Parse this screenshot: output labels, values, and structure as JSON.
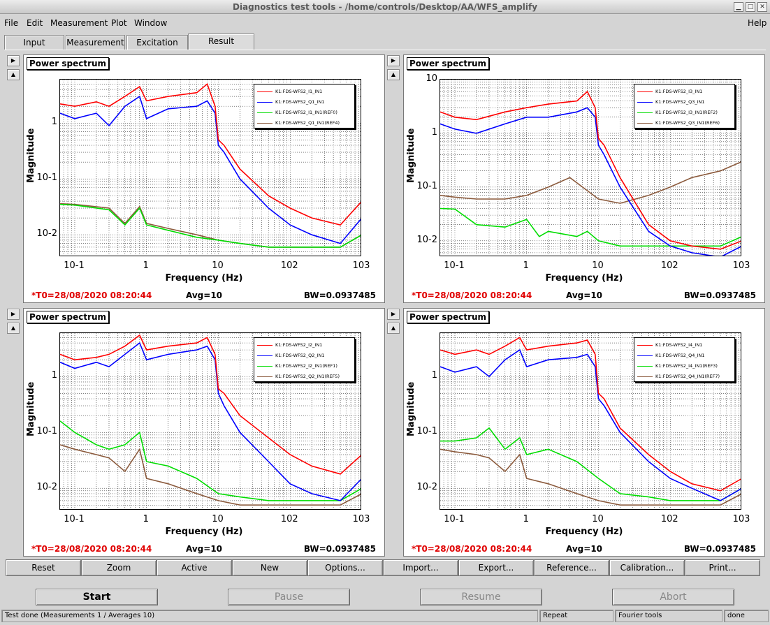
{
  "window": {
    "title": "Diagnostics test tools - /home/controls/Desktop/AA/WFS_amplify"
  },
  "menu": {
    "file": "File",
    "edit": "Edit",
    "measurement": "Measurement",
    "plot": "Plot",
    "window": "Window",
    "help": "Help"
  },
  "tabs": [
    "Input",
    "Measurement",
    "Excitation",
    "Result"
  ],
  "buttons": [
    "Reset",
    "Zoom",
    "Active",
    "New",
    "Options...",
    "Import...",
    "Export...",
    "Reference...",
    "Calibration...",
    "Print..."
  ],
  "controls": {
    "start": "Start",
    "pause": "Pause",
    "resume": "Resume",
    "abort": "Abort"
  },
  "status": {
    "message": "Test done (Measurements 1 / Averages 10)",
    "mode": "Repeat",
    "tool": "Fourier tools",
    "state": "done"
  },
  "colors": {
    "ch1": "#ff0000",
    "ch2": "#0000ff",
    "ref1": "#00dd00",
    "ref2": "#8b5a3c"
  },
  "chart_data": [
    {
      "type": "line",
      "title": "Power spectrum",
      "xlabel": "Frequency (Hz)",
      "ylabel": "Magnitude",
      "x_scale": "log",
      "y_scale": "log",
      "xlim": [
        0.0625,
        1000
      ],
      "ylim": [
        0.004,
        6
      ],
      "x_ticks": [
        "10-1",
        "1",
        "10",
        "102",
        "103"
      ],
      "y_ticks": [
        "1",
        "10-1",
        "10-2"
      ],
      "legend": [
        "K1:FDS-WFS2_I1_IN1",
        "K1:FDS-WFS2_Q1_IN1",
        "K1:FDS-WFS2_I1_IN1(REF0)",
        "K1:FDS-WFS2_Q1_IN1(REF4)"
      ],
      "t0": "*T0=28/08/2020 08:20:44",
      "avg": "Avg=10",
      "bw": "BW=0.0937485",
      "series": [
        {
          "x": [
            0.0625,
            0.1,
            0.2,
            0.3,
            0.5,
            0.8,
            1,
            2,
            5,
            7,
            9,
            10,
            12,
            20,
            50,
            100,
            200,
            500,
            1000
          ],
          "values": [
            2.2,
            2.0,
            2.4,
            2.0,
            3.0,
            4.5,
            2.5,
            3.0,
            3.5,
            5.0,
            2.0,
            0.5,
            0.4,
            0.15,
            0.05,
            0.03,
            0.02,
            0.015,
            0.04
          ]
        },
        {
          "x": [
            0.0625,
            0.1,
            0.2,
            0.3,
            0.5,
            0.8,
            1,
            2,
            5,
            7,
            9,
            10,
            12,
            20,
            50,
            100,
            200,
            500,
            1000
          ],
          "values": [
            1.5,
            1.2,
            1.5,
            0.9,
            2.0,
            3.0,
            1.2,
            1.8,
            2.0,
            2.5,
            1.5,
            0.4,
            0.3,
            0.1,
            0.03,
            0.015,
            0.01,
            0.007,
            0.02
          ]
        },
        {
          "x": [
            0.0625,
            0.1,
            0.3,
            0.5,
            0.8,
            1,
            2,
            5,
            10,
            20,
            50,
            100,
            500,
            1000
          ],
          "values": [
            0.035,
            0.034,
            0.028,
            0.015,
            0.03,
            0.015,
            0.012,
            0.009,
            0.008,
            0.007,
            0.006,
            0.006,
            0.006,
            0.01
          ]
        },
        {
          "x": [
            0.0625,
            0.1,
            0.3,
            0.5,
            0.8,
            1,
            2,
            5,
            10,
            20,
            50,
            100,
            500,
            1000
          ],
          "values": [
            0.036,
            0.035,
            0.03,
            0.016,
            0.032,
            0.016,
            0.013,
            0.01,
            0.008,
            0.007,
            0.006,
            0.006,
            0.006,
            0.01
          ]
        }
      ]
    },
    {
      "type": "line",
      "title": "Power spectrum",
      "xlabel": "Frequency (Hz)",
      "ylabel": "Magnitude",
      "x_scale": "log",
      "y_scale": "log",
      "xlim": [
        0.0625,
        1000
      ],
      "ylim": [
        0.005,
        10
      ],
      "x_ticks": [
        "10-1",
        "1",
        "10",
        "102",
        "103"
      ],
      "y_ticks": [
        "10",
        "1",
        "10-1",
        "10-2"
      ],
      "legend": [
        "K1:FDS-WFS2_I3_IN1",
        "K1:FDS-WFS2_Q3_IN1",
        "K1:FDS-WFS2_I3_IN1(REF2)",
        "K1:FDS-WFS2_Q3_IN1(REF6)"
      ],
      "t0": "*T0=28/08/2020 08:20:44",
      "avg": "Avg=10",
      "bw": "BW=0.0937485",
      "series": [
        {
          "x": [
            0.0625,
            0.1,
            0.2,
            0.5,
            1,
            2,
            5,
            7,
            9,
            10,
            12,
            20,
            50,
            100,
            200,
            500,
            1000
          ],
          "values": [
            2.5,
            2.0,
            1.8,
            2.5,
            3.0,
            3.5,
            4.0,
            6.0,
            3.0,
            0.8,
            0.6,
            0.15,
            0.02,
            0.01,
            0.008,
            0.007,
            0.01
          ]
        },
        {
          "x": [
            0.0625,
            0.1,
            0.2,
            0.5,
            1,
            2,
            5,
            7,
            9,
            10,
            12,
            20,
            50,
            100,
            200,
            500,
            1000
          ],
          "values": [
            1.5,
            1.2,
            1.0,
            1.5,
            2.0,
            2.0,
            2.5,
            3.0,
            2.0,
            0.6,
            0.4,
            0.1,
            0.015,
            0.008,
            0.006,
            0.005,
            0.008
          ]
        },
        {
          "x": [
            0.0625,
            0.1,
            0.2,
            0.5,
            1,
            1.5,
            2,
            5,
            7,
            10,
            20,
            50,
            100,
            500,
            1000
          ],
          "values": [
            0.04,
            0.039,
            0.02,
            0.018,
            0.025,
            0.012,
            0.015,
            0.012,
            0.015,
            0.01,
            0.008,
            0.008,
            0.008,
            0.008,
            0.012
          ]
        },
        {
          "x": [
            0.0625,
            0.1,
            0.2,
            0.5,
            1,
            2,
            4,
            6,
            10,
            20,
            50,
            100,
            200,
            500,
            1000
          ],
          "values": [
            0.07,
            0.065,
            0.06,
            0.06,
            0.07,
            0.1,
            0.15,
            0.1,
            0.06,
            0.05,
            0.07,
            0.1,
            0.15,
            0.2,
            0.3
          ]
        }
      ]
    },
    {
      "type": "line",
      "title": "Power spectrum",
      "xlabel": "Frequency (Hz)",
      "ylabel": "Magnitude",
      "x_scale": "log",
      "y_scale": "log",
      "xlim": [
        0.0625,
        1000
      ],
      "ylim": [
        0.004,
        6
      ],
      "x_ticks": [
        "10-1",
        "1",
        "10",
        "102",
        "103"
      ],
      "y_ticks": [
        "1",
        "10-1",
        "10-2"
      ],
      "legend": [
        "K1:FDS-WFS2_I2_IN1",
        "K1:FDS-WFS2_Q2_IN1",
        "K1:FDS-WFS2_I2_IN1(REF1)",
        "K1:FDS-WFS2_Q2_IN1(REF5)"
      ],
      "t0": "*T0=28/08/2020 08:20:44",
      "avg": "Avg=10",
      "bw": "BW=0.0937485",
      "series": [
        {
          "x": [
            0.0625,
            0.1,
            0.2,
            0.3,
            0.5,
            0.8,
            1,
            2,
            5,
            7,
            9,
            10,
            12,
            20,
            50,
            100,
            200,
            500,
            1000
          ],
          "values": [
            2.5,
            2.0,
            2.2,
            2.5,
            3.5,
            5.5,
            3.0,
            3.5,
            4.0,
            5.0,
            2.5,
            0.6,
            0.5,
            0.2,
            0.08,
            0.04,
            0.025,
            0.018,
            0.04
          ]
        },
        {
          "x": [
            0.0625,
            0.1,
            0.2,
            0.3,
            0.5,
            0.8,
            1,
            2,
            5,
            7,
            9,
            10,
            12,
            20,
            50,
            100,
            200,
            500,
            1000
          ],
          "values": [
            1.8,
            1.4,
            1.8,
            1.5,
            2.5,
            4.0,
            2.0,
            2.5,
            3.0,
            3.5,
            2.0,
            0.5,
            0.3,
            0.1,
            0.03,
            0.012,
            0.008,
            0.006,
            0.015
          ]
        },
        {
          "x": [
            0.0625,
            0.1,
            0.2,
            0.3,
            0.5,
            0.8,
            1,
            2,
            5,
            10,
            20,
            50,
            100,
            500,
            1000
          ],
          "values": [
            0.16,
            0.1,
            0.06,
            0.05,
            0.06,
            0.1,
            0.03,
            0.025,
            0.015,
            0.008,
            0.007,
            0.006,
            0.006,
            0.006,
            0.01
          ]
        },
        {
          "x": [
            0.0625,
            0.1,
            0.2,
            0.3,
            0.5,
            0.8,
            1,
            2,
            5,
            10,
            20,
            50,
            100,
            500,
            1000
          ],
          "values": [
            0.06,
            0.05,
            0.04,
            0.035,
            0.02,
            0.05,
            0.015,
            0.012,
            0.008,
            0.006,
            0.005,
            0.005,
            0.005,
            0.005,
            0.008
          ]
        }
      ]
    },
    {
      "type": "line",
      "title": "Power spectrum",
      "xlabel": "Frequency (Hz)",
      "ylabel": "Magnitude",
      "x_scale": "log",
      "y_scale": "log",
      "xlim": [
        0.0625,
        1000
      ],
      "ylim": [
        0.004,
        6
      ],
      "x_ticks": [
        "10-1",
        "1",
        "10",
        "102",
        "103"
      ],
      "y_ticks": [
        "1",
        "10-1",
        "10-2"
      ],
      "legend": [
        "K1:FDS-WFS2_I4_IN1",
        "K1:FDS-WFS2_Q4_IN1",
        "K1:FDS-WFS2_I4_IN1(REF3)",
        "K1:FDS-WFS2_Q4_IN1(REF7)"
      ],
      "t0": "*T0=28/08/2020 08:20:44",
      "avg": "Avg=10",
      "bw": "BW=0.0937485",
      "series": [
        {
          "x": [
            0.0625,
            0.1,
            0.2,
            0.3,
            0.5,
            0.8,
            1,
            2,
            5,
            7,
            9,
            10,
            12,
            20,
            50,
            100,
            200,
            500,
            1000
          ],
          "values": [
            3.0,
            2.5,
            3.0,
            2.5,
            3.5,
            5.0,
            3.0,
            3.5,
            4.0,
            4.5,
            2.5,
            0.5,
            0.4,
            0.12,
            0.04,
            0.02,
            0.012,
            0.009,
            0.015
          ]
        },
        {
          "x": [
            0.0625,
            0.1,
            0.2,
            0.3,
            0.5,
            0.8,
            1,
            2,
            5,
            7,
            9,
            10,
            12,
            20,
            50,
            100,
            200,
            500,
            1000
          ],
          "values": [
            1.5,
            1.2,
            1.5,
            1.0,
            2.0,
            3.0,
            1.5,
            2.0,
            2.2,
            2.5,
            1.5,
            0.4,
            0.3,
            0.1,
            0.03,
            0.015,
            0.01,
            0.006,
            0.01
          ]
        },
        {
          "x": [
            0.0625,
            0.1,
            0.2,
            0.3,
            0.5,
            0.8,
            1,
            2,
            5,
            10,
            20,
            50,
            100,
            500,
            1000
          ],
          "values": [
            0.07,
            0.07,
            0.08,
            0.12,
            0.05,
            0.08,
            0.04,
            0.05,
            0.03,
            0.015,
            0.008,
            0.007,
            0.006,
            0.006,
            0.01
          ]
        },
        {
          "x": [
            0.0625,
            0.1,
            0.2,
            0.3,
            0.5,
            0.8,
            1,
            2,
            5,
            10,
            20,
            50,
            100,
            500,
            1000
          ],
          "values": [
            0.05,
            0.045,
            0.04,
            0.035,
            0.02,
            0.04,
            0.015,
            0.012,
            0.008,
            0.006,
            0.005,
            0.005,
            0.005,
            0.005,
            0.008
          ]
        }
      ]
    }
  ]
}
